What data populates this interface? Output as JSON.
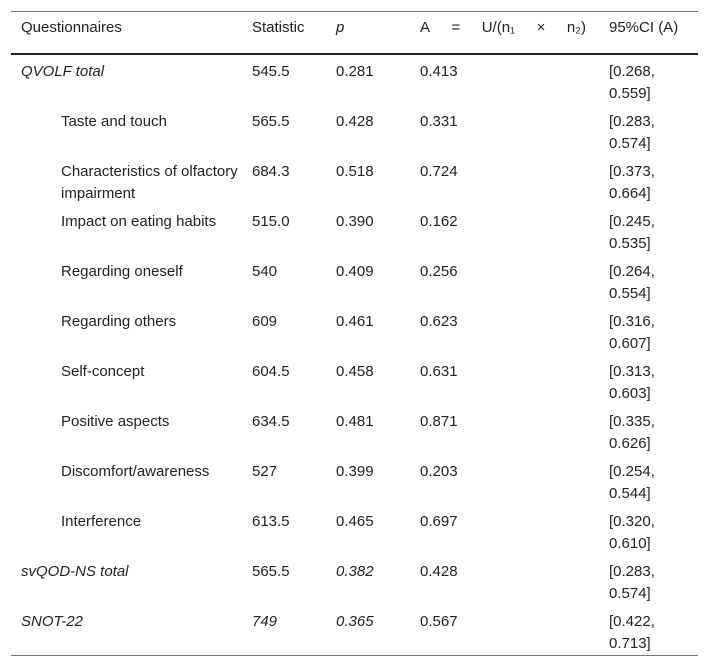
{
  "table": {
    "headers": {
      "questionnaires": "Questionnaires",
      "statistic": "Statistic",
      "p": "p",
      "a_parts": [
        "A",
        "=",
        "U/(n₁",
        "×",
        "n₂)"
      ],
      "ci": "95%CI (A)"
    },
    "rows": [
      {
        "label": "QVOLF total",
        "statistic": "545.5",
        "p": "0.281",
        "a": "0.413",
        "ci": "[0.268, 0.559]"
      },
      {
        "label": "Taste and touch",
        "statistic": "565.5",
        "p": "0.428",
        "a": "0.331",
        "ci": "[0.283, 0.574]"
      },
      {
        "label": "Characteristics of olfactory impairment",
        "statistic": "684.3",
        "p": "0.518",
        "a": "0.724",
        "ci": "[0.373, 0.664]"
      },
      {
        "label": "Impact on eating habits",
        "statistic": "515.0",
        "p": "0.390",
        "a": "0.162",
        "ci": "[0.245, 0.535]"
      },
      {
        "label": "Regarding oneself",
        "statistic": "540",
        "p": "0.409",
        "a": "0.256",
        "ci": "[0.264, 0.554]"
      },
      {
        "label": "Regarding others",
        "statistic": "609",
        "p": "0.461",
        "a": "0.623",
        "ci": "[0.316, 0.607]"
      },
      {
        "label": "Self-concept",
        "statistic": "604.5",
        "p": "0.458",
        "a": "0.631",
        "ci": "[0.313, 0.603]"
      },
      {
        "label": "Positive aspects",
        "statistic": "634.5",
        "p": "0.481",
        "a": "0.871",
        "ci": "[0.335, 0.626]"
      },
      {
        "label": "Discomfort/awareness",
        "statistic": "527",
        "p": "0.399",
        "a": "0.203",
        "ci": "[0.254, 0.544]"
      },
      {
        "label": "Interference",
        "statistic": "613.5",
        "p": "0.465",
        "a": "0.697",
        "ci": "[0.320, 0.610]"
      },
      {
        "label": "svQOD-NS total",
        "statistic": "565.5",
        "p": "0.382",
        "a": "0.428",
        "ci": "[0.283, 0.574]"
      },
      {
        "label": "SNOT-22",
        "statistic": "749",
        "p": "0.365",
        "a": "0.567",
        "ci": "[0.422, 0.713]"
      }
    ]
  }
}
